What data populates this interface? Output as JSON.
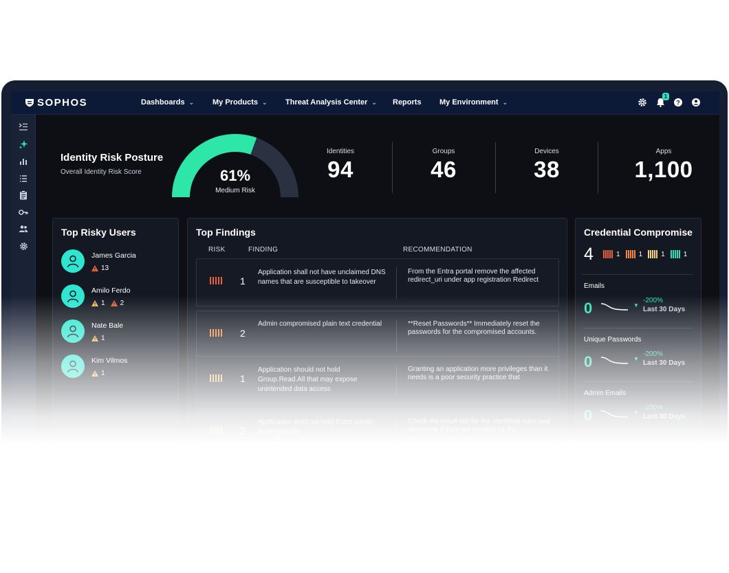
{
  "brand": {
    "name": "SOPHOS"
  },
  "nav": {
    "items": [
      {
        "label": "Dashboards",
        "has_dropdown": true
      },
      {
        "label": "My Products",
        "has_dropdown": true
      },
      {
        "label": "Threat Analysis Center",
        "has_dropdown": true
      },
      {
        "label": "Reports",
        "has_dropdown": false
      },
      {
        "label": "My Environment",
        "has_dropdown": true
      }
    ],
    "icons": [
      "gear-icon",
      "bell-icon",
      "help-icon",
      "user-icon"
    ],
    "notification_count": "1"
  },
  "sidebar": {
    "icons": [
      "collapse-icon",
      "sparkle-icon",
      "bar-chart-icon",
      "list-icon",
      "clipboard-icon",
      "key-icon",
      "users-icon",
      "settings-icon"
    ]
  },
  "posture": {
    "title": "Identity Risk Posture",
    "subtitle": "Overall Identity Risk Score",
    "percent_label": "61%",
    "percent_value": 61,
    "level": "Medium Risk"
  },
  "stats": [
    {
      "label": "Identities",
      "value": "94"
    },
    {
      "label": "Groups",
      "value": "46"
    },
    {
      "label": "Devices",
      "value": "38"
    },
    {
      "label": "Apps",
      "value": "1,100"
    }
  ],
  "risky_users": {
    "title": "Top Risky Users",
    "users": [
      {
        "name": "James Garcia",
        "alerts": [
          {
            "level": "high",
            "count": "13"
          }
        ]
      },
      {
        "name": "Amilo Ferdo",
        "alerts": [
          {
            "level": "medium",
            "count": "1"
          },
          {
            "level": "high",
            "count": "2"
          }
        ]
      },
      {
        "name": "Nate Bale",
        "alerts": [
          {
            "level": "medium",
            "count": "1"
          }
        ]
      },
      {
        "name": "Kim Vilmos",
        "alerts": [
          {
            "level": "medium",
            "count": "1"
          }
        ]
      }
    ]
  },
  "findings": {
    "title": "Top Findings",
    "headers": {
      "risk": "RISK",
      "finding": "FINDING",
      "recommendation": "RECOMMENDATION"
    },
    "rows": [
      {
        "risk_color": "#e8643c",
        "number": "1",
        "finding": "Application shall not have unclaimed DNS names that are susceptible to takeover",
        "recommendation": "From the Entra portal remove the affected redirect_uri under app registration Redirect"
      },
      {
        "risk_color": "#f0883e",
        "number": "2",
        "finding": "Admin compromised plain text credential",
        "recommendation": "**Reset Passwords** Immediately reset the passwords for the compromised accounts."
      },
      {
        "risk_color": "#f2b35c",
        "number": "1",
        "finding": "Application should not hold Group.Read.All that may expose unintended data access",
        "recommendation": "Granting an application more privileges than it needs is a poor security practice that"
      },
      {
        "risk_color": "#f2b35c",
        "number": "2",
        "finding": "Application shall not hold Entra admin privileged role",
        "recommendation": "Check the result tab for the identified roles and determine if they are needed for the"
      }
    ]
  },
  "credentials": {
    "title": "Credential Compromise",
    "total": "4",
    "legend": [
      {
        "color": "#e8643c",
        "count": "1"
      },
      {
        "color": "#f0883e",
        "count": "1"
      },
      {
        "color": "#f2d27a",
        "count": "1"
      },
      {
        "color": "#2fe0b8",
        "count": "1"
      }
    ],
    "metrics": [
      {
        "label": "Emails",
        "value": "0",
        "change": "-200%",
        "period": "Last 30 Days"
      },
      {
        "label": "Unique Passwords",
        "value": "0",
        "change": "-200%",
        "period": "Last 30 Days"
      },
      {
        "label": "Admin Emails",
        "value": "0",
        "change": "-200%",
        "period": "Last 30 Days"
      }
    ]
  }
}
